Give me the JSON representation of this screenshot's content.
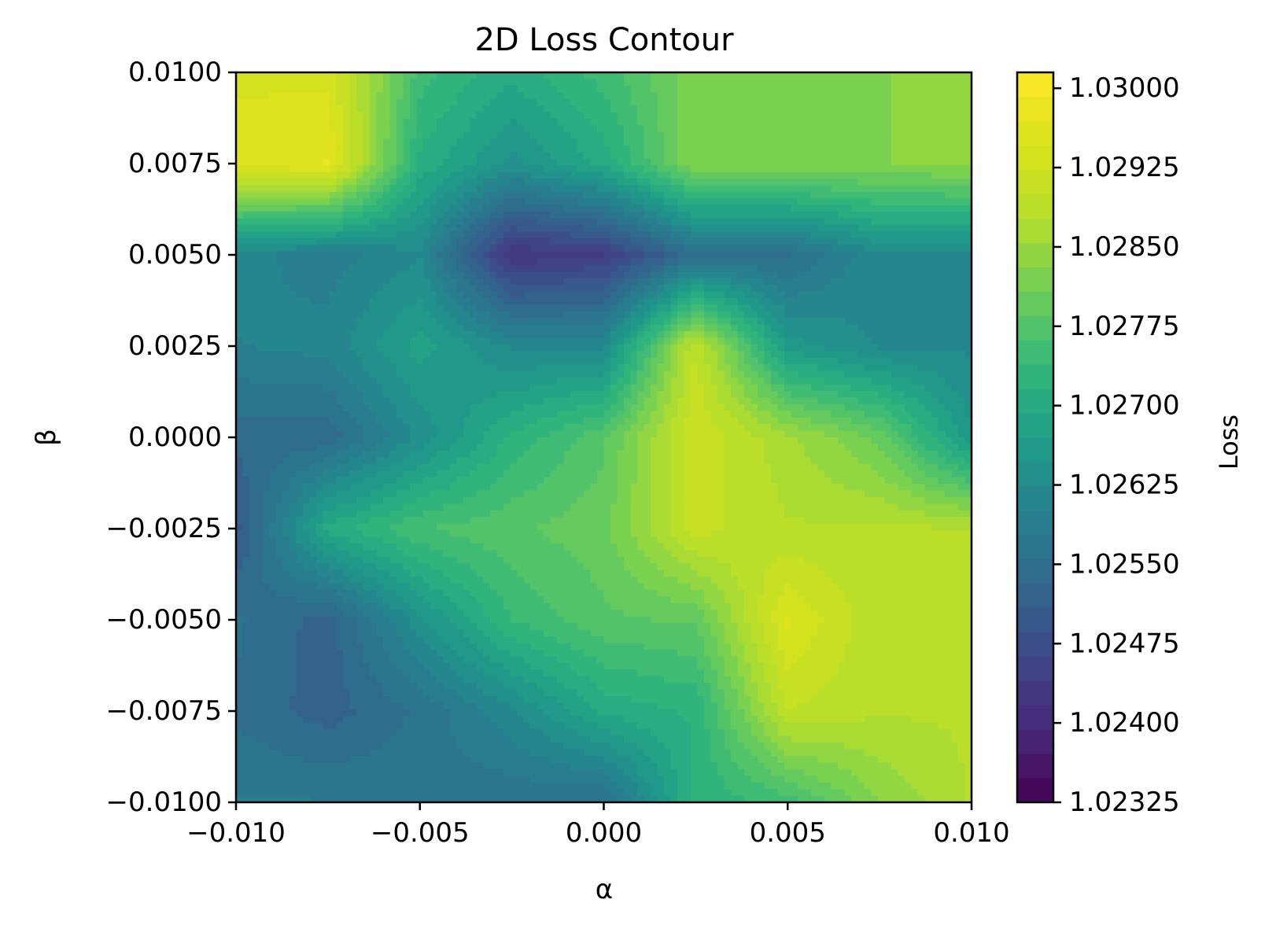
{
  "chart_data": {
    "type": "heatmap",
    "title": "2D Loss Contour",
    "xlabel": "α",
    "ylabel": "β",
    "xlim": [
      -0.01,
      0.01
    ],
    "ylim": [
      -0.01,
      0.01
    ],
    "x_ticks": [
      -0.01,
      -0.005,
      0.0,
      0.005,
      0.01
    ],
    "x_tick_labels": [
      "−0.010",
      "−0.005",
      "0.000",
      "0.005",
      "0.010"
    ],
    "y_ticks": [
      0.01,
      0.0075,
      0.005,
      0.0025,
      0.0,
      -0.0025,
      -0.005,
      -0.0075,
      -0.01
    ],
    "y_tick_labels": [
      "0.0100",
      "0.0075",
      "0.0050",
      "0.0025",
      "0.0000",
      "−0.0025",
      "−0.0050",
      "−0.0075",
      "−0.0100"
    ],
    "colorbar": {
      "label": "Loss",
      "colormap": "viridis",
      "range": [
        1.02325,
        1.03015
      ],
      "ticks": [
        1.02325,
        1.024,
        1.02475,
        1.0255,
        1.02625,
        1.027,
        1.02775,
        1.0285,
        1.02925,
        1.03
      ],
      "tick_labels": [
        "1.02325",
        "1.02400",
        "1.02475",
        "1.02550",
        "1.02625",
        "1.02700",
        "1.02775",
        "1.02850",
        "1.02925",
        "1.03000"
      ]
    },
    "grid": false,
    "grid_x": [
      -0.01,
      -0.0075,
      -0.005,
      -0.0025,
      0.0,
      0.0025,
      0.005,
      0.0075,
      0.01
    ],
    "grid_y": [
      0.01,
      0.0075,
      0.005,
      0.0025,
      0.0,
      -0.0025,
      -0.005,
      -0.0075,
      -0.01
    ],
    "z_values": [
      [
        1.0294,
        1.0294,
        1.0275,
        1.027,
        1.0275,
        1.0282,
        1.0283,
        1.0283,
        1.0284
      ],
      [
        1.0296,
        1.0297,
        1.0271,
        1.0264,
        1.027,
        1.0283,
        1.0283,
        1.0283,
        1.0284
      ],
      [
        1.0261,
        1.0259,
        1.0262,
        1.0242,
        1.0244,
        1.0255,
        1.0255,
        1.0262,
        1.0262
      ],
      [
        1.026,
        1.0261,
        1.0268,
        1.0262,
        1.0262,
        1.029,
        1.0266,
        1.0262,
        1.0262
      ],
      [
        1.0254,
        1.0254,
        1.0263,
        1.0272,
        1.0278,
        1.0292,
        1.0286,
        1.028,
        1.0265
      ],
      [
        1.025,
        1.027,
        1.0276,
        1.0278,
        1.028,
        1.0291,
        1.0288,
        1.0288,
        1.0288
      ],
      [
        1.0256,
        1.0252,
        1.0264,
        1.0274,
        1.0278,
        1.0279,
        1.0295,
        1.0288,
        1.0288
      ],
      [
        1.0255,
        1.0252,
        1.0256,
        1.0262,
        1.027,
        1.0272,
        1.029,
        1.0288,
        1.0288
      ],
      [
        1.0258,
        1.0258,
        1.0257,
        1.0256,
        1.0255,
        1.0272,
        1.0275,
        1.0283,
        1.0288
      ]
    ]
  }
}
